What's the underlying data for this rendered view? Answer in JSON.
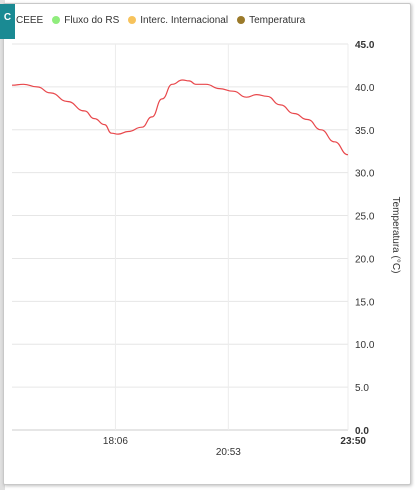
{
  "tab": {
    "label": "C",
    "color": "#1a8a93"
  },
  "legend": [
    {
      "label": "CEEE",
      "color": ""
    },
    {
      "label": "Fluxo do RS",
      "color": "#90ed7d"
    },
    {
      "label": "Interc. Internacional",
      "color": "#f7c35c"
    },
    {
      "label": "Temperatura",
      "color": "#9b7a2a"
    }
  ],
  "chart_data": {
    "type": "line",
    "x_tick_labels": [
      "18:06",
      "20:53",
      "23:50"
    ],
    "y_tick_labels": [
      "0.0",
      "5.0",
      "10.0",
      "15.0",
      "20.0",
      "25.0",
      "30.0",
      "35.0",
      "40.0",
      "45.0"
    ],
    "ylabel": "Temperatura (°C)",
    "ylim": [
      0,
      45
    ],
    "x_range": [
      "15:33",
      "23:50"
    ],
    "series": [
      {
        "name": "Temperatura",
        "color": "#e8474b",
        "x": [
          "15:33",
          "15:50",
          "16:10",
          "16:30",
          "16:55",
          "17:20",
          "17:35",
          "17:50",
          "18:00",
          "18:10",
          "18:25",
          "18:45",
          "19:00",
          "19:15",
          "19:30",
          "19:45",
          "19:55",
          "20:05",
          "20:20",
          "20:40",
          "21:00",
          "21:20",
          "21:35",
          "21:50",
          "22:10",
          "22:30",
          "22:50",
          "23:10",
          "23:30",
          "23:50"
        ],
        "y": [
          40.2,
          40.3,
          40.0,
          39.3,
          38.3,
          37.2,
          36.3,
          35.6,
          34.6,
          34.5,
          34.8,
          35.3,
          36.5,
          38.6,
          40.3,
          40.8,
          40.7,
          40.3,
          40.3,
          39.8,
          39.5,
          38.8,
          39.1,
          38.9,
          37.9,
          36.9,
          36.2,
          35.0,
          33.6,
          32.1
        ]
      }
    ],
    "grid": true,
    "legend_position": "top"
  }
}
